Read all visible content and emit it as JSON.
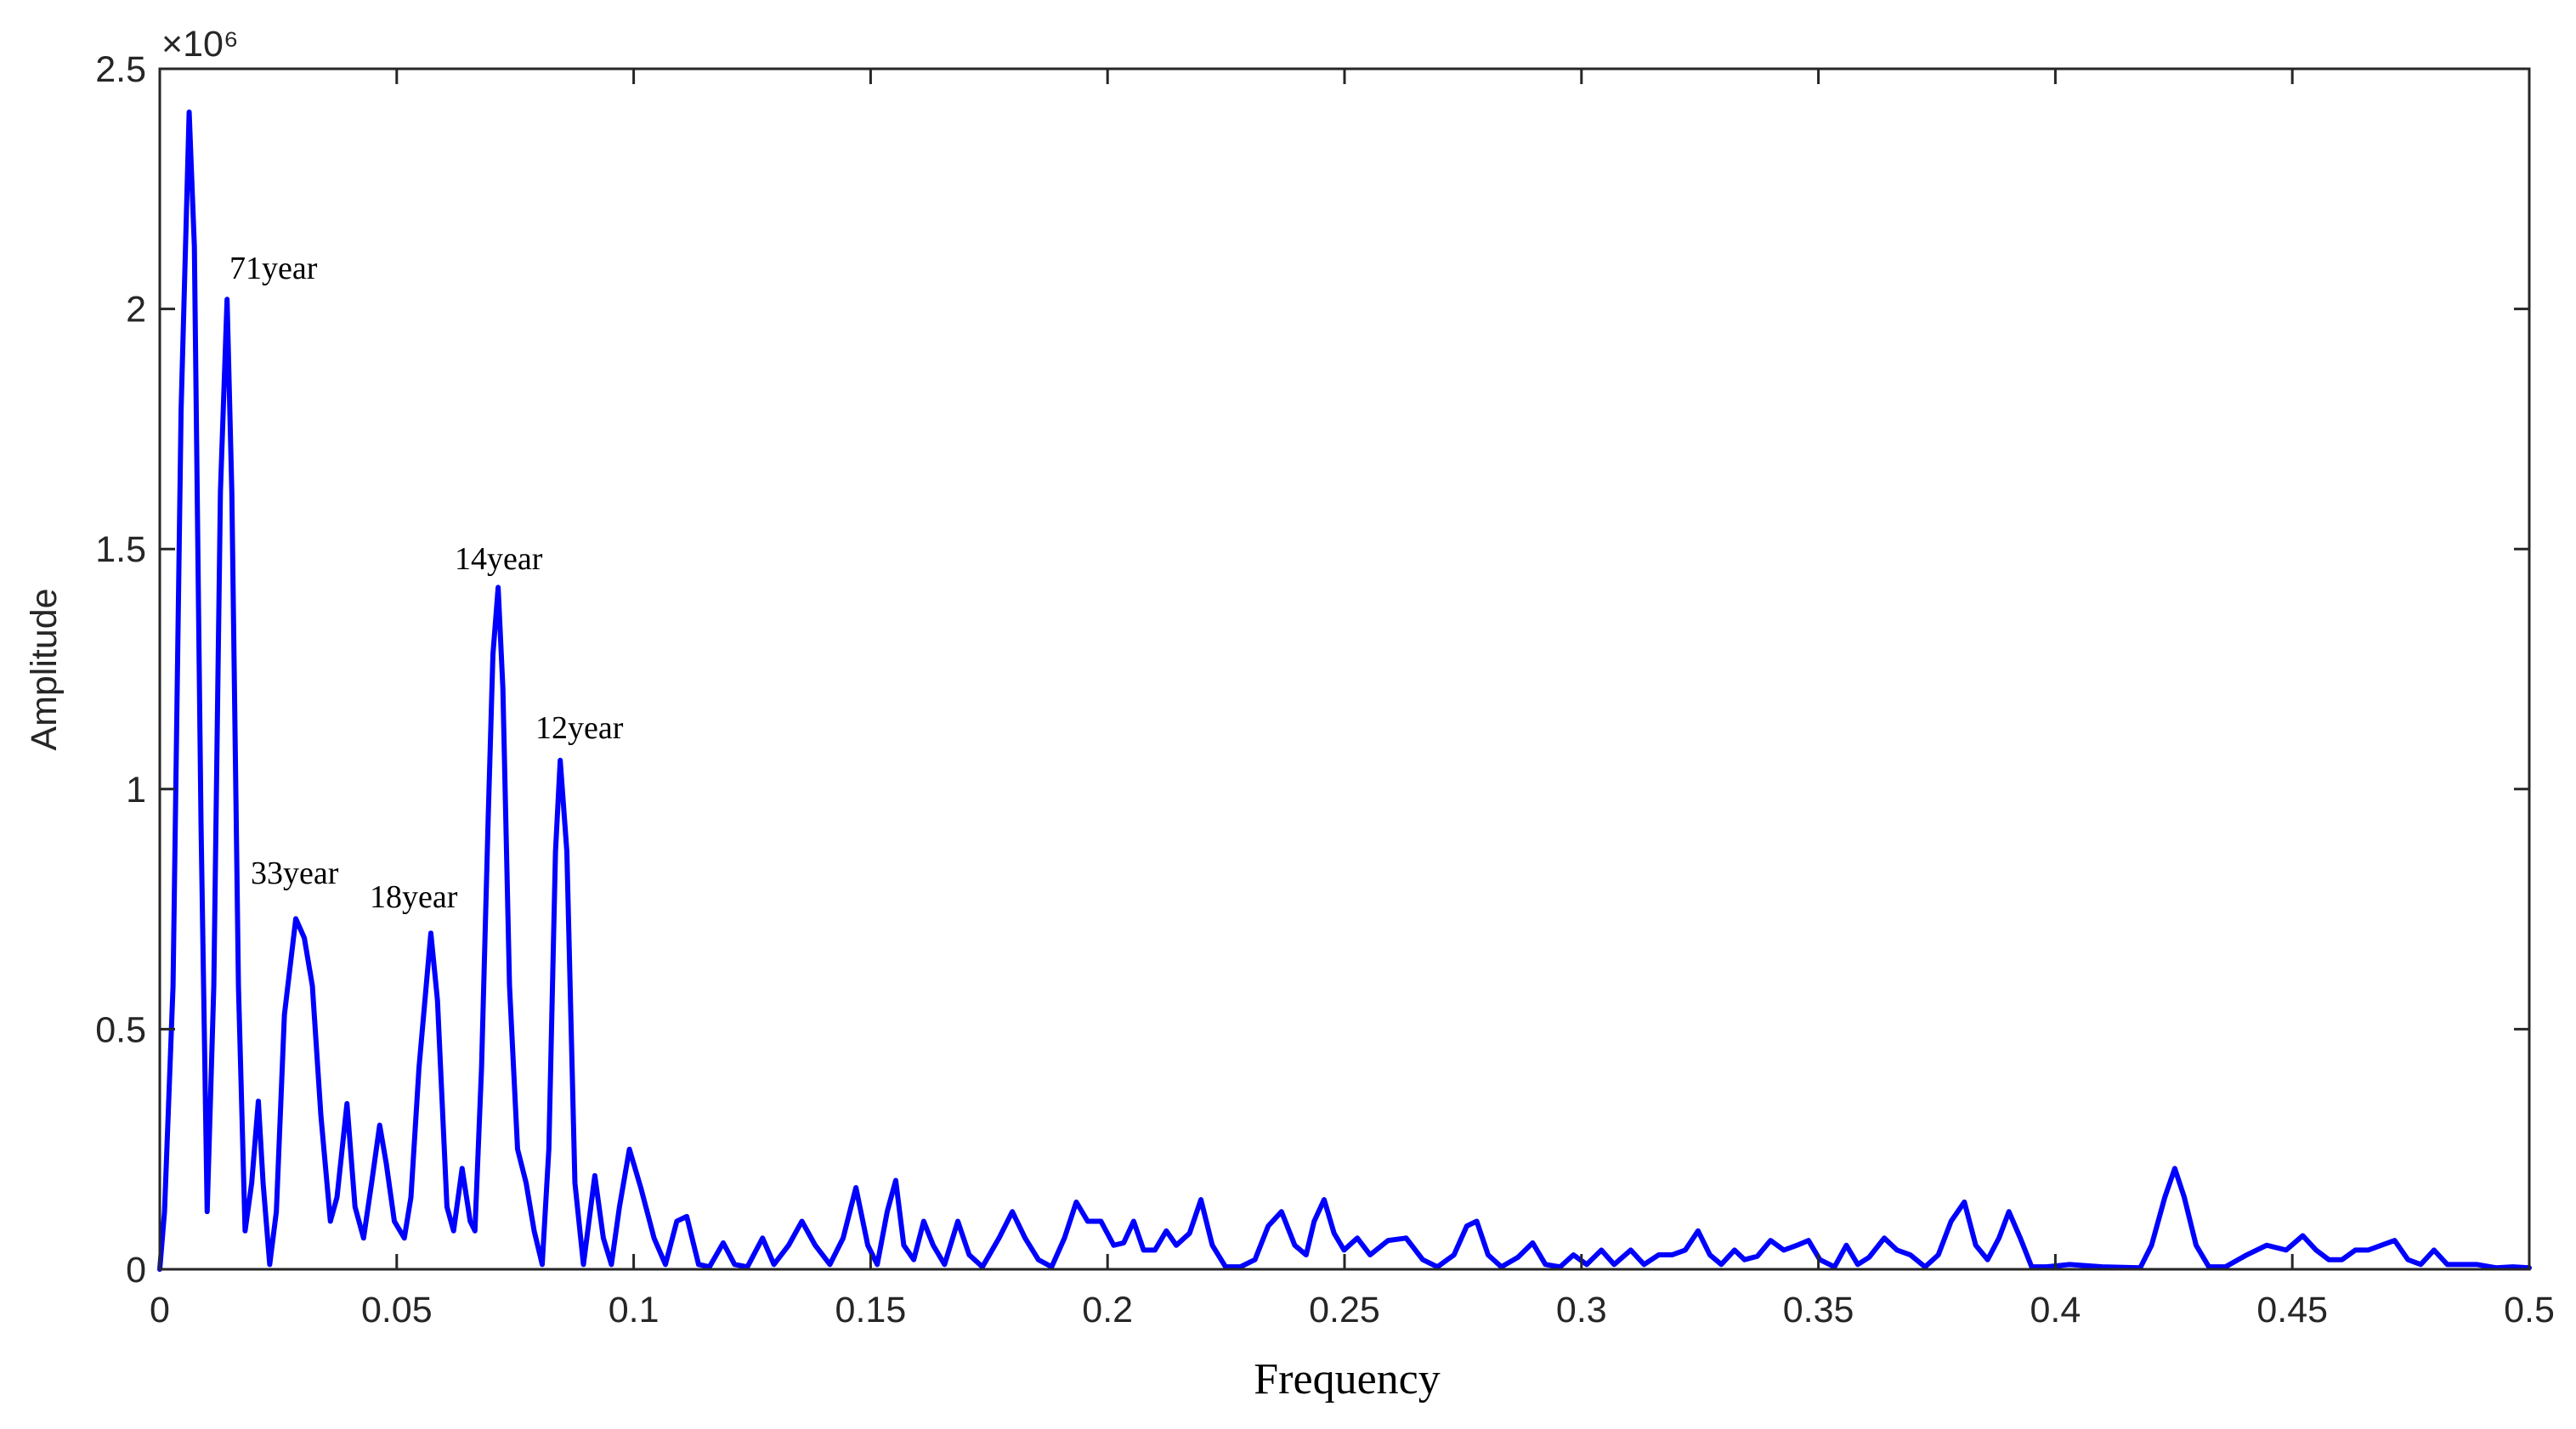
{
  "chart_data": {
    "type": "line",
    "xlabel": "Frequency",
    "ylabel": "Amplitude",
    "y_multiplier": "×10⁶",
    "xlim": [
      0,
      0.5
    ],
    "ylim": [
      0,
      2.5
    ],
    "xticks": [
      0,
      0.05,
      0.1,
      0.15,
      0.2,
      0.25,
      0.3,
      0.35,
      0.4,
      0.45,
      0.5
    ],
    "yticks": [
      0,
      0.5,
      1,
      1.5,
      2,
      2.5
    ],
    "annotations": [
      "71year",
      "14year",
      "12year",
      "33year",
      "18year"
    ],
    "series": [
      {
        "color": "#0000ff",
        "x": [
          0,
          0.001,
          0.0028,
          0.0045,
          0.0062,
          0.0073,
          0.0087,
          0.01,
          0.0114,
          0.0128,
          0.0142,
          0.0152,
          0.0166,
          0.018,
          0.0194,
          0.0208,
          0.0218,
          0.0232,
          0.0246,
          0.0263,
          0.0287,
          0.0305,
          0.0322,
          0.034,
          0.036,
          0.0374,
          0.0395,
          0.0412,
          0.043,
          0.0447,
          0.0464,
          0.0478,
          0.0495,
          0.0516,
          0.053,
          0.0547,
          0.0572,
          0.0586,
          0.0606,
          0.062,
          0.0638,
          0.0655,
          0.0665,
          0.0679,
          0.0693,
          0.0703,
          0.0714,
          0.0724,
          0.0738,
          0.0755,
          0.0773,
          0.079,
          0.0807,
          0.0821,
          0.0835,
          0.0845,
          0.0859,
          0.0876,
          0.0894,
          0.0918,
          0.0936,
          0.0953,
          0.097,
          0.0991,
          0.1015,
          0.1043,
          0.1067,
          0.1091,
          0.1112,
          0.1137,
          0.116,
          0.1189,
          0.1213,
          0.124,
          0.1272,
          0.1296,
          0.1327,
          0.1355,
          0.1383,
          0.1414,
          0.1442,
          0.1469,
          0.1494,
          0.1514,
          0.1535,
          0.1553,
          0.157,
          0.1591,
          0.1612,
          0.1632,
          0.1656,
          0.1684,
          0.1708,
          0.1736,
          0.1771,
          0.1799,
          0.1826,
          0.1854,
          0.1882,
          0.1909,
          0.1934,
          0.1958,
          0.1986,
          0.2013,
          0.2034,
          0.2055,
          0.2076,
          0.21,
          0.2124,
          0.2145,
          0.2173,
          0.2197,
          0.2221,
          0.2249,
          0.228,
          0.2311,
          0.2339,
          0.2367,
          0.2395,
          0.2419,
          0.2436,
          0.2457,
          0.2478,
          0.2499,
          0.2527,
          0.2554,
          0.2592,
          0.263,
          0.2665,
          0.2696,
          0.2731,
          0.2758,
          0.2779,
          0.2803,
          0.2831,
          0.2866,
          0.2897,
          0.2924,
          0.2955,
          0.2983,
          0.3011,
          0.3042,
          0.3069,
          0.3104,
          0.3132,
          0.3163,
          0.3191,
          0.3219,
          0.3246,
          0.3271,
          0.3295,
          0.3323,
          0.3344,
          0.3371,
          0.3399,
          0.3427,
          0.3455,
          0.3479,
          0.3503,
          0.3534,
          0.3559,
          0.3583,
          0.3607,
          0.3639,
          0.3666,
          0.3694,
          0.3725,
          0.3753,
          0.378,
          0.3808,
          0.3832,
          0.3857,
          0.3881,
          0.3902,
          0.3926,
          0.395,
          0.3981,
          0.403,
          0.4099,
          0.4179,
          0.4203,
          0.4231,
          0.4252,
          0.4272,
          0.4297,
          0.4324,
          0.4359,
          0.4404,
          0.4446,
          0.4487,
          0.4522,
          0.455,
          0.4577,
          0.4605,
          0.4633,
          0.466,
          0.4688,
          0.4716,
          0.4744,
          0.4771,
          0.4799,
          0.4827,
          0.4854,
          0.4889,
          0.4931,
          0.4965,
          0.5
        ],
        "values": [
          0,
          0.12,
          0.59,
          1.79,
          2.41,
          2.13,
          0.93,
          0.12,
          0.59,
          1.62,
          2.02,
          1.62,
          0.59,
          0.08,
          0.18,
          0.35,
          0.18,
          0.01,
          0.12,
          0.53,
          0.73,
          0.69,
          0.59,
          0.32,
          0.1,
          0.15,
          0.345,
          0.13,
          0.065,
          0.18,
          0.3,
          0.22,
          0.1,
          0.065,
          0.15,
          0.42,
          0.7,
          0.56,
          0.13,
          0.08,
          0.21,
          0.1,
          0.08,
          0.42,
          0.94,
          1.28,
          1.42,
          1.21,
          0.59,
          0.25,
          0.18,
          0.08,
          0.01,
          0.25,
          0.87,
          1.06,
          0.87,
          0.18,
          0.01,
          0.195,
          0.065,
          0.01,
          0.13,
          0.25,
          0.17,
          0.065,
          0.01,
          0.1,
          0.11,
          0.01,
          0.005,
          0.055,
          0.01,
          0.005,
          0.065,
          0.01,
          0.05,
          0.1,
          0.05,
          0.01,
          0.065,
          0.17,
          0.05,
          0.01,
          0.12,
          0.185,
          0.05,
          0.02,
          0.1,
          0.05,
          0.01,
          0.1,
          0.03,
          0.005,
          0.065,
          0.12,
          0.065,
          0.02,
          0.005,
          0.065,
          0.14,
          0.1,
          0.1,
          0.05,
          0.055,
          0.1,
          0.04,
          0.04,
          0.08,
          0.05,
          0.075,
          0.145,
          0.05,
          0.005,
          0.005,
          0.02,
          0.09,
          0.12,
          0.05,
          0.03,
          0.1,
          0.145,
          0.075,
          0.04,
          0.065,
          0.03,
          0.06,
          0.065,
          0.02,
          0.005,
          0.03,
          0.09,
          0.1,
          0.03,
          0.005,
          0.025,
          0.055,
          0.01,
          0.005,
          0.03,
          0.01,
          0.04,
          0.01,
          0.04,
          0.01,
          0.03,
          0.03,
          0.04,
          0.08,
          0.03,
          0.01,
          0.04,
          0.02,
          0.027,
          0.06,
          0.04,
          0.05,
          0.06,
          0.02,
          0.005,
          0.05,
          0.01,
          0.025,
          0.065,
          0.04,
          0.03,
          0.005,
          0.03,
          0.1,
          0.14,
          0.05,
          0.02,
          0.065,
          0.12,
          0.065,
          0.005,
          0.005,
          0.01,
          0.005,
          0.003,
          0.05,
          0.15,
          0.21,
          0.15,
          0.05,
          0.005,
          0.005,
          0.03,
          0.05,
          0.04,
          0.07,
          0.04,
          0.02,
          0.02,
          0.04,
          0.04,
          0.05,
          0.06,
          0.02,
          0.01,
          0.04,
          0.01,
          0.01,
          0.01,
          0.003,
          0.005,
          0.003
        ]
      }
    ]
  }
}
